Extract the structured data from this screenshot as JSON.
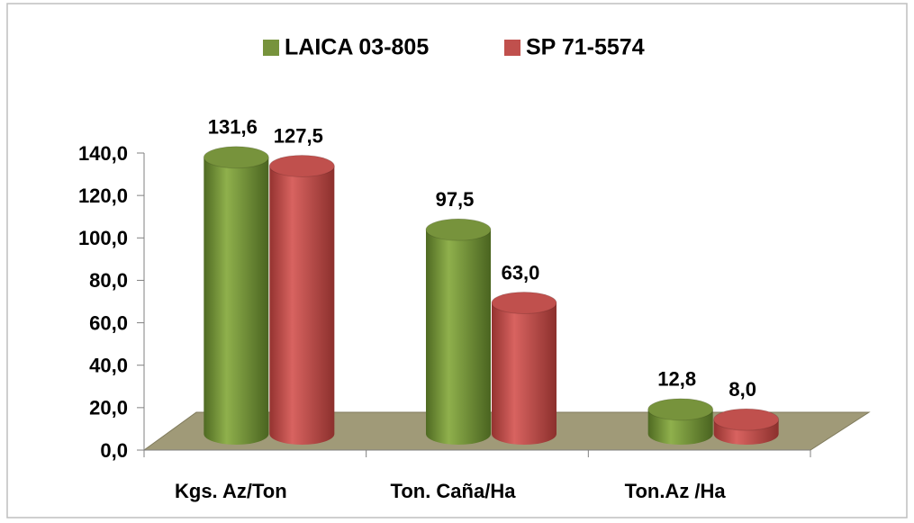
{
  "chart_data": {
    "type": "bar",
    "categories": [
      "Kgs. Az/Ton",
      "Ton. Caña/Ha",
      "Ton.Az /Ha"
    ],
    "series": [
      {
        "name": "LAICA 03-805",
        "color": "#77933c",
        "values": [
          131.6,
          97.5,
          12.8
        ],
        "value_labels": [
          "131,6",
          "97,5",
          "12,8"
        ]
      },
      {
        "name": "SP 71-5574",
        "color": "#c0504d",
        "values": [
          127.5,
          63.0,
          8.0
        ],
        "value_labels": [
          "127,5",
          "63,0",
          "8,0"
        ]
      }
    ],
    "ylim": [
      0,
      140
    ],
    "yticks": [
      {
        "value": 0,
        "label": "0,0"
      },
      {
        "value": 20,
        "label": "20,0"
      },
      {
        "value": 40,
        "label": "40,0"
      },
      {
        "value": 60,
        "label": "60,0"
      },
      {
        "value": 80,
        "label": "80,0"
      },
      {
        "value": 100,
        "label": "100,0"
      },
      {
        "value": 120,
        "label": "120,0"
      },
      {
        "value": 140,
        "label": "140,0"
      }
    ],
    "legend": "top"
  }
}
